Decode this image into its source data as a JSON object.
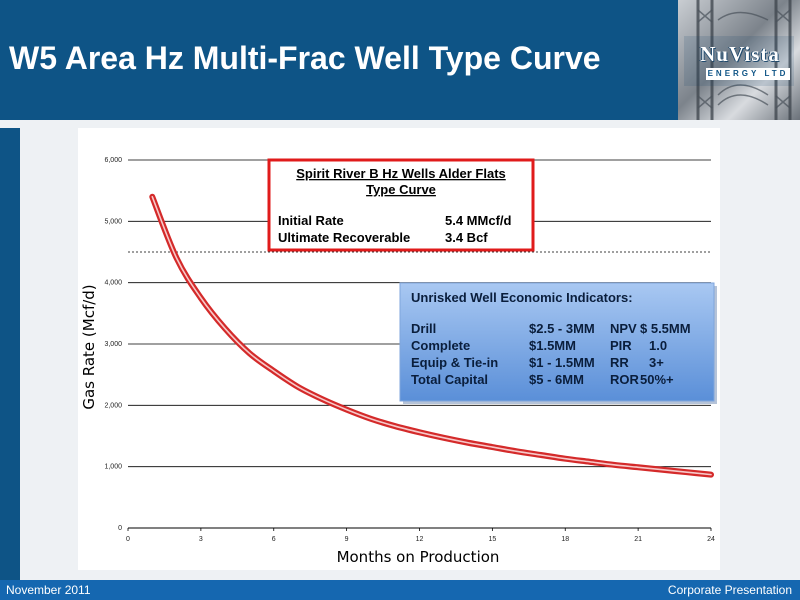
{
  "slide": {
    "title": "W5 Area Hz Multi-Frac Well Type Curve",
    "footer_left": "November  2011",
    "footer_right": "Corporate Presentation"
  },
  "logo": {
    "name": "NuVista",
    "tagline": "ENERGY LTD"
  },
  "colors": {
    "header": "#0e5486",
    "footer": "#1567b0",
    "curve": "#d42a2a",
    "type_box_border": "#e01b1b",
    "econ_box": "#6d9fe0"
  },
  "chart_data": {
    "type": "line",
    "title": "",
    "xlabel": "Months on Production",
    "ylabel": "Gas Rate (Mcf/d)",
    "xlim": [
      0,
      24
    ],
    "ylim": [
      0,
      6000
    ],
    "x_ticks": [
      "0",
      "3",
      "6",
      "9",
      "12",
      "15",
      "18",
      "21",
      "24"
    ],
    "y_ticks": [
      "0",
      "1,000",
      "2,000",
      "3,000",
      "4,000",
      "5,000",
      "6,000"
    ],
    "grid": "horizontal",
    "reference_line": 4500,
    "series": [
      {
        "x": [
          1,
          2,
          3,
          4,
          5,
          6,
          7,
          8,
          9,
          10,
          11,
          12,
          13,
          14,
          15,
          16,
          17,
          18,
          19,
          20,
          21,
          22,
          23,
          24
        ],
        "values": [
          5400,
          4400,
          3750,
          3250,
          2850,
          2560,
          2300,
          2100,
          1930,
          1780,
          1660,
          1560,
          1470,
          1390,
          1320,
          1250,
          1190,
          1130,
          1080,
          1030,
          990,
          950,
          910,
          870
        ]
      }
    ]
  },
  "type_curve_box": {
    "title_line1": "Spirit River B Hz Wells Alder Flats",
    "title_line2": "Type Curve",
    "rows": [
      {
        "label": "Initial Rate",
        "value": "5.4 MMcf/d"
      },
      {
        "label": "Ultimate Recoverable",
        "value": "3.4 Bcf"
      }
    ]
  },
  "economics_box": {
    "title": "Unrisked Well Economic Indicators:",
    "rows": [
      {
        "item": "Drill",
        "cost": "$2.5 - 3MM",
        "metric": "NPV",
        "value": "$ 5.5MM"
      },
      {
        "item": "Complete",
        "cost": "$1.5MM",
        "metric": "PIR",
        "value": "1.0"
      },
      {
        "item": "Equip & Tie-in",
        "cost": "$1 - 1.5MM",
        "metric": "RR",
        "value": "3+"
      },
      {
        "item": "Total Capital",
        "cost": "$5 - 6MM",
        "metric": "ROR",
        "value": "50%+"
      }
    ]
  }
}
